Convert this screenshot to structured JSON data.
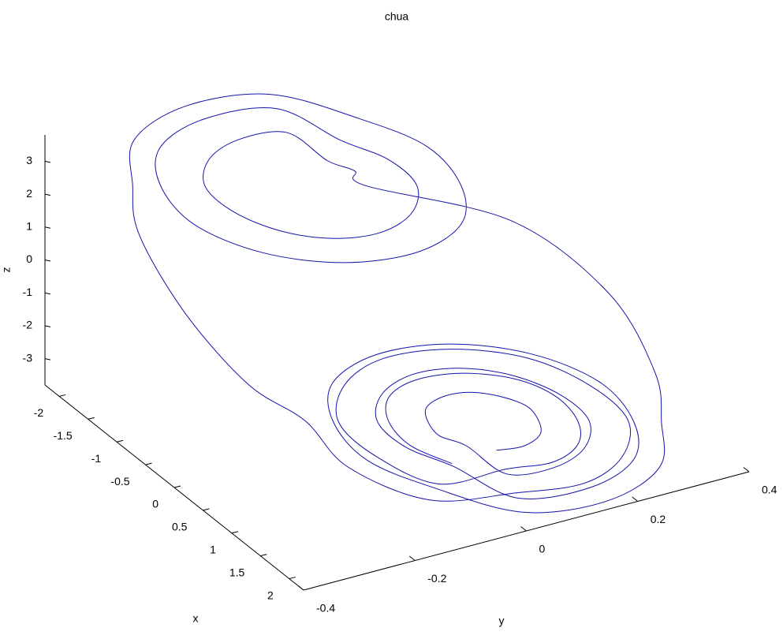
{
  "chart_data": {
    "type": "line3d",
    "title": "chua",
    "xlabel": "x",
    "ylabel": "y",
    "zlabel": "z",
    "color": "#1414a8",
    "xlim": [
      -2.25,
      2.25
    ],
    "ylim": [
      -0.4,
      0.4
    ],
    "zlim": [
      -3.8,
      3.8
    ],
    "xticks": [
      -2,
      -1.5,
      -1,
      -0.5,
      0,
      0.5,
      1,
      1.5,
      2
    ],
    "yticks": [
      -0.4,
      -0.2,
      0,
      0.2,
      0.4
    ],
    "zticks": [
      -3,
      -2,
      -1,
      0,
      1,
      2,
      3
    ],
    "x": [
      1.73,
      1.7,
      1.61,
      1.5,
      1.39,
      1.31,
      1.28,
      1.31,
      1.39,
      1.5,
      1.61,
      1.7,
      1.91,
      1.86,
      1.71,
      1.5,
      1.29,
      1.14,
      1.09,
      1.14,
      1.29,
      1.5,
      1.71,
      1.86,
      2.1,
      2.02,
      1.8,
      1.5,
      1.2,
      0.98,
      0.9,
      0.98,
      1.2,
      1.5,
      1.8,
      2.02,
      2.21,
      2.12,
      1.86,
      1.5,
      0.9,
      0,
      -0.9,
      -1.5,
      -1.61,
      -1.7,
      -1.91,
      -1.86,
      -1.71,
      -1.5,
      -1.29,
      -1.14,
      -1.09,
      -1.14,
      -1.29,
      -1.5,
      -1.71,
      -1.86,
      -2.1,
      -2.02,
      -1.8,
      -1.5,
      -1.2,
      -0.98,
      -0.9,
      -0.98,
      -1.2,
      -1.5,
      -1.8,
      -2.02,
      -2.21,
      -2.12,
      -1.86,
      -1.5,
      -0.9,
      0,
      0.9,
      1.5,
      1.86,
      2.12,
      2.06,
      1.99,
      1.78,
      1.5,
      1.22,
      1.01,
      0.94,
      1.01,
      1.22,
      1.5,
      1.78,
      1.99,
      1.88,
      1.83,
      1.69,
      1.5,
      1.31,
      1.18,
      1.13,
      1.18,
      1.31,
      1.5,
      1.69,
      1.83
    ],
    "y": [
      0,
      0.05,
      0.09,
      0.1,
      0.09,
      0.05,
      0,
      -0.05,
      -0.09,
      -0.1,
      -0.09,
      -0.05,
      0,
      0.09,
      0.16,
      0.19,
      0.16,
      0.09,
      0,
      -0.09,
      -0.16,
      -0.19,
      -0.16,
      -0.09,
      0,
      0.14,
      0.24,
      0.27,
      0.24,
      0.14,
      0,
      -0.14,
      -0.24,
      -0.27,
      -0.24,
      -0.14,
      0,
      0.16,
      0.28,
      0.32,
      0.37,
      0.38,
      0.3,
      0.1,
      0.09,
      0.05,
      0,
      -0.09,
      -0.16,
      -0.19,
      -0.16,
      -0.09,
      0,
      0.09,
      0.16,
      0.19,
      0.16,
      0.09,
      0,
      -0.14,
      -0.24,
      -0.27,
      -0.24,
      -0.14,
      0,
      0.14,
      0.24,
      0.27,
      0.24,
      0.14,
      0,
      -0.16,
      -0.28,
      -0.32,
      -0.37,
      -0.38,
      -0.36,
      -0.32,
      -0.28,
      -0.16,
      0,
      0.13,
      0.22,
      0.26,
      0.22,
      0.13,
      0,
      -0.13,
      -0.22,
      -0.26,
      -0.22,
      -0.13,
      0,
      0.09,
      0.15,
      0.17,
      0.15,
      0.09,
      0,
      -0.09,
      -0.15,
      -0.17,
      -0.15,
      -0.09
    ],
    "z": [
      -2.07,
      -2.22,
      -2.18,
      -1.96,
      -1.61,
      -1.24,
      -0.93,
      -0.78,
      -0.82,
      -1.04,
      -1.39,
      -1.76,
      -2.54,
      -2.82,
      -2.75,
      -2.34,
      -1.71,
      -1.02,
      -0.46,
      -0.18,
      -0.25,
      -0.66,
      -1.29,
      -1.98,
      -3.01,
      -3.42,
      -3.31,
      -2.72,
      -1.81,
      -0.81,
      0.01,
      0.42,
      0.31,
      -0.28,
      -1.19,
      -2.19,
      -3.29,
      -3.78,
      -3.65,
      -2.95,
      -2.5,
      -1.4,
      -0.1,
      1.04,
      1.39,
      1.76,
      2.54,
      2.82,
      2.75,
      2.34,
      1.71,
      1.02,
      0.46,
      0.18,
      0.25,
      0.66,
      1.29,
      1.98,
      3.01,
      3.42,
      3.31,
      2.72,
      1.81,
      0.81,
      -0.01,
      -0.42,
      -0.31,
      0.28,
      1.19,
      2.19,
      3.29,
      3.78,
      3.65,
      2.95,
      2.5,
      1.4,
      0.4,
      -0.05,
      -1.14,
      -2.32,
      -2.91,
      -3.3,
      -3.2,
      -2.65,
      -1.79,
      -0.85,
      -0.09,
      0.3,
      0.2,
      -0.35,
      -1.21,
      -2.15,
      -2.44,
      -2.7,
      -2.63,
      -2.27,
      -1.69,
      -1.07,
      -0.56,
      -0.3,
      -0.37,
      -0.74,
      -1.31,
      -1.93
    ]
  }
}
